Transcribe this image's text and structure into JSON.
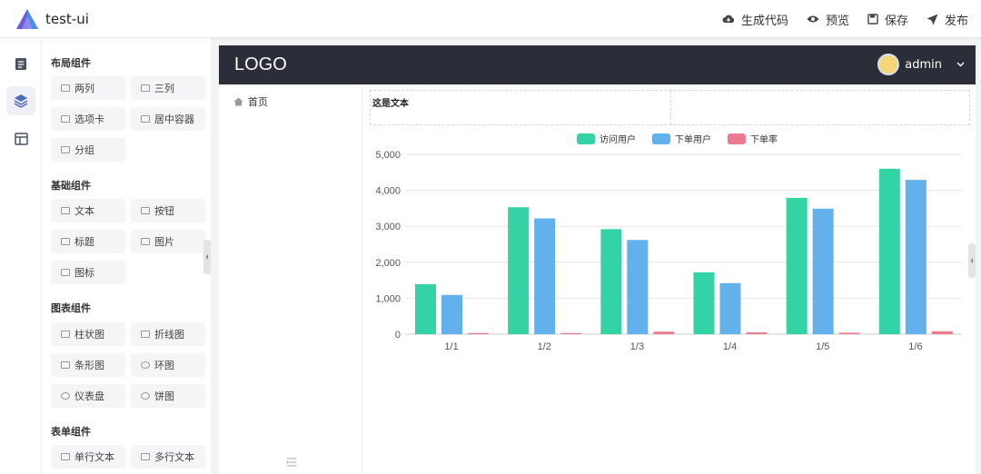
{
  "app": {
    "title": "test-ui"
  },
  "topbar": {
    "actions": [
      {
        "label": "生成代码",
        "icon": "cloud-download-icon"
      },
      {
        "label": "预览",
        "icon": "eye-icon"
      },
      {
        "label": "保存",
        "icon": "save-icon"
      },
      {
        "label": "发布",
        "icon": "send-icon"
      }
    ]
  },
  "rail": {
    "items": [
      "document-icon",
      "layers-icon",
      "layout-icon"
    ],
    "active_index": 1
  },
  "components": {
    "groups": [
      {
        "title": "布局组件",
        "items": [
          {
            "label": "两列",
            "icon": "two-column-icon"
          },
          {
            "label": "三列",
            "icon": "three-column-icon"
          },
          {
            "label": "选项卡",
            "icon": "tabs-icon"
          },
          {
            "label": "居中容器",
            "icon": "center-container-icon"
          },
          {
            "label": "分组",
            "icon": "group-icon"
          }
        ]
      },
      {
        "title": "基础组件",
        "items": [
          {
            "label": "文本",
            "icon": "text-icon"
          },
          {
            "label": "按钮",
            "icon": "button-icon"
          },
          {
            "label": "标题",
            "icon": "heading-icon"
          },
          {
            "label": "图片",
            "icon": "image-icon"
          },
          {
            "label": "图标",
            "icon": "icon-icon"
          }
        ]
      },
      {
        "title": "图表组件",
        "items": [
          {
            "label": "柱状图",
            "icon": "bar-chart-icon"
          },
          {
            "label": "折线图",
            "icon": "line-chart-icon"
          },
          {
            "label": "条形图",
            "icon": "horizontal-bar-icon"
          },
          {
            "label": "环图",
            "icon": "ring-chart-icon"
          },
          {
            "label": "仪表盘",
            "icon": "gauge-icon"
          },
          {
            "label": "饼图",
            "icon": "pie-chart-icon"
          }
        ]
      },
      {
        "title": "表单组件",
        "items": [
          {
            "label": "单行文本",
            "icon": "input-icon"
          },
          {
            "label": "多行文本",
            "icon": "textarea-icon"
          }
        ]
      }
    ]
  },
  "preview": {
    "logo": "LOGO",
    "user": {
      "name": "admin"
    },
    "nav": [
      {
        "label": "首页",
        "icon": "home-icon"
      }
    ],
    "grid_text": "这是文本"
  },
  "colors": {
    "series1": "#33d3a6",
    "series2": "#62b0ec",
    "series3": "#ec7b8e",
    "header_dark": "#2b2d38"
  },
  "chart_data": {
    "type": "bar",
    "categories": [
      "1/1",
      "1/2",
      "1/3",
      "1/4",
      "1/5",
      "1/6"
    ],
    "series": [
      {
        "name": "访问用户",
        "values": [
          1390,
          3530,
          2920,
          1720,
          3790,
          4600
        ]
      },
      {
        "name": "下单用户",
        "values": [
          1090,
          3220,
          2620,
          1420,
          3490,
          4290
        ]
      },
      {
        "name": "下单率",
        "values": [
          30,
          30,
          70,
          50,
          40,
          80
        ]
      }
    ],
    "ylim": [
      0,
      5000
    ],
    "yticks": [
      "0",
      "1,000",
      "2,000",
      "3,000",
      "4,000",
      "5,000"
    ],
    "legend_position": "top-center",
    "grid": true
  }
}
